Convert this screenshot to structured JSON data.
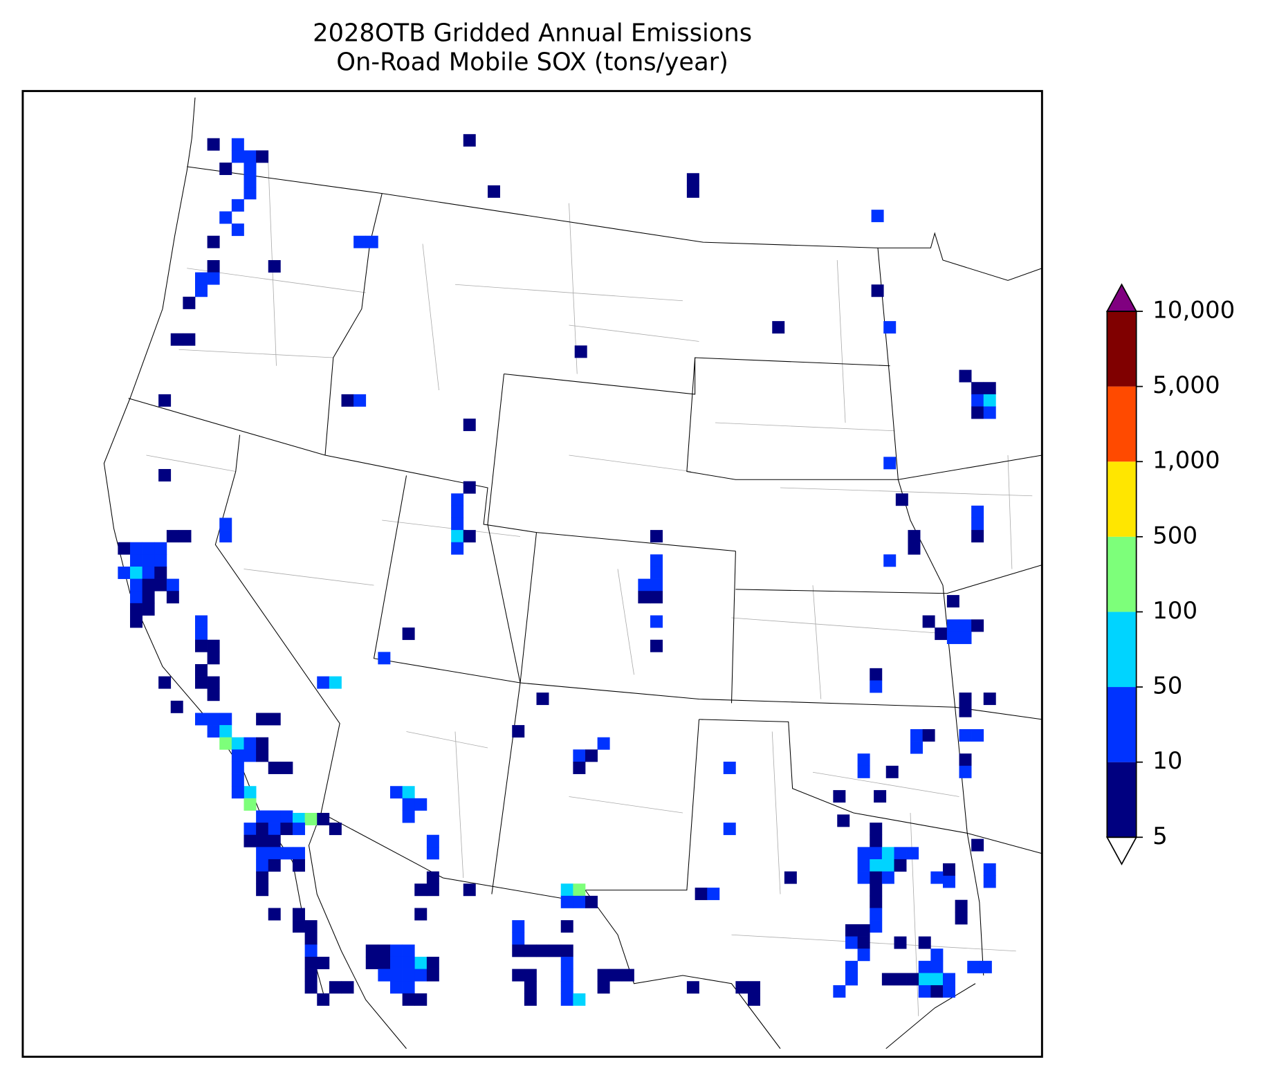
{
  "title": "2028OTB Gridded Annual Emissions",
  "subtitle": "On-Road Mobile SOX (tons/year)",
  "colorbar": {
    "ticks": [
      5,
      10,
      50,
      100,
      500,
      {
        "value": 1000,
        "label": "1,000"
      },
      {
        "value": 5000,
        "label": "5,000"
      },
      {
        "value": 10000,
        "label": "10,000"
      }
    ],
    "colors": [
      "#000080",
      "#0033ff",
      "#00d4ff",
      "#7dff7a",
      "#ffe600",
      "#ff4a00",
      "#800000"
    ],
    "over_color": "#800080",
    "under_color": "#ffffff"
  }
}
